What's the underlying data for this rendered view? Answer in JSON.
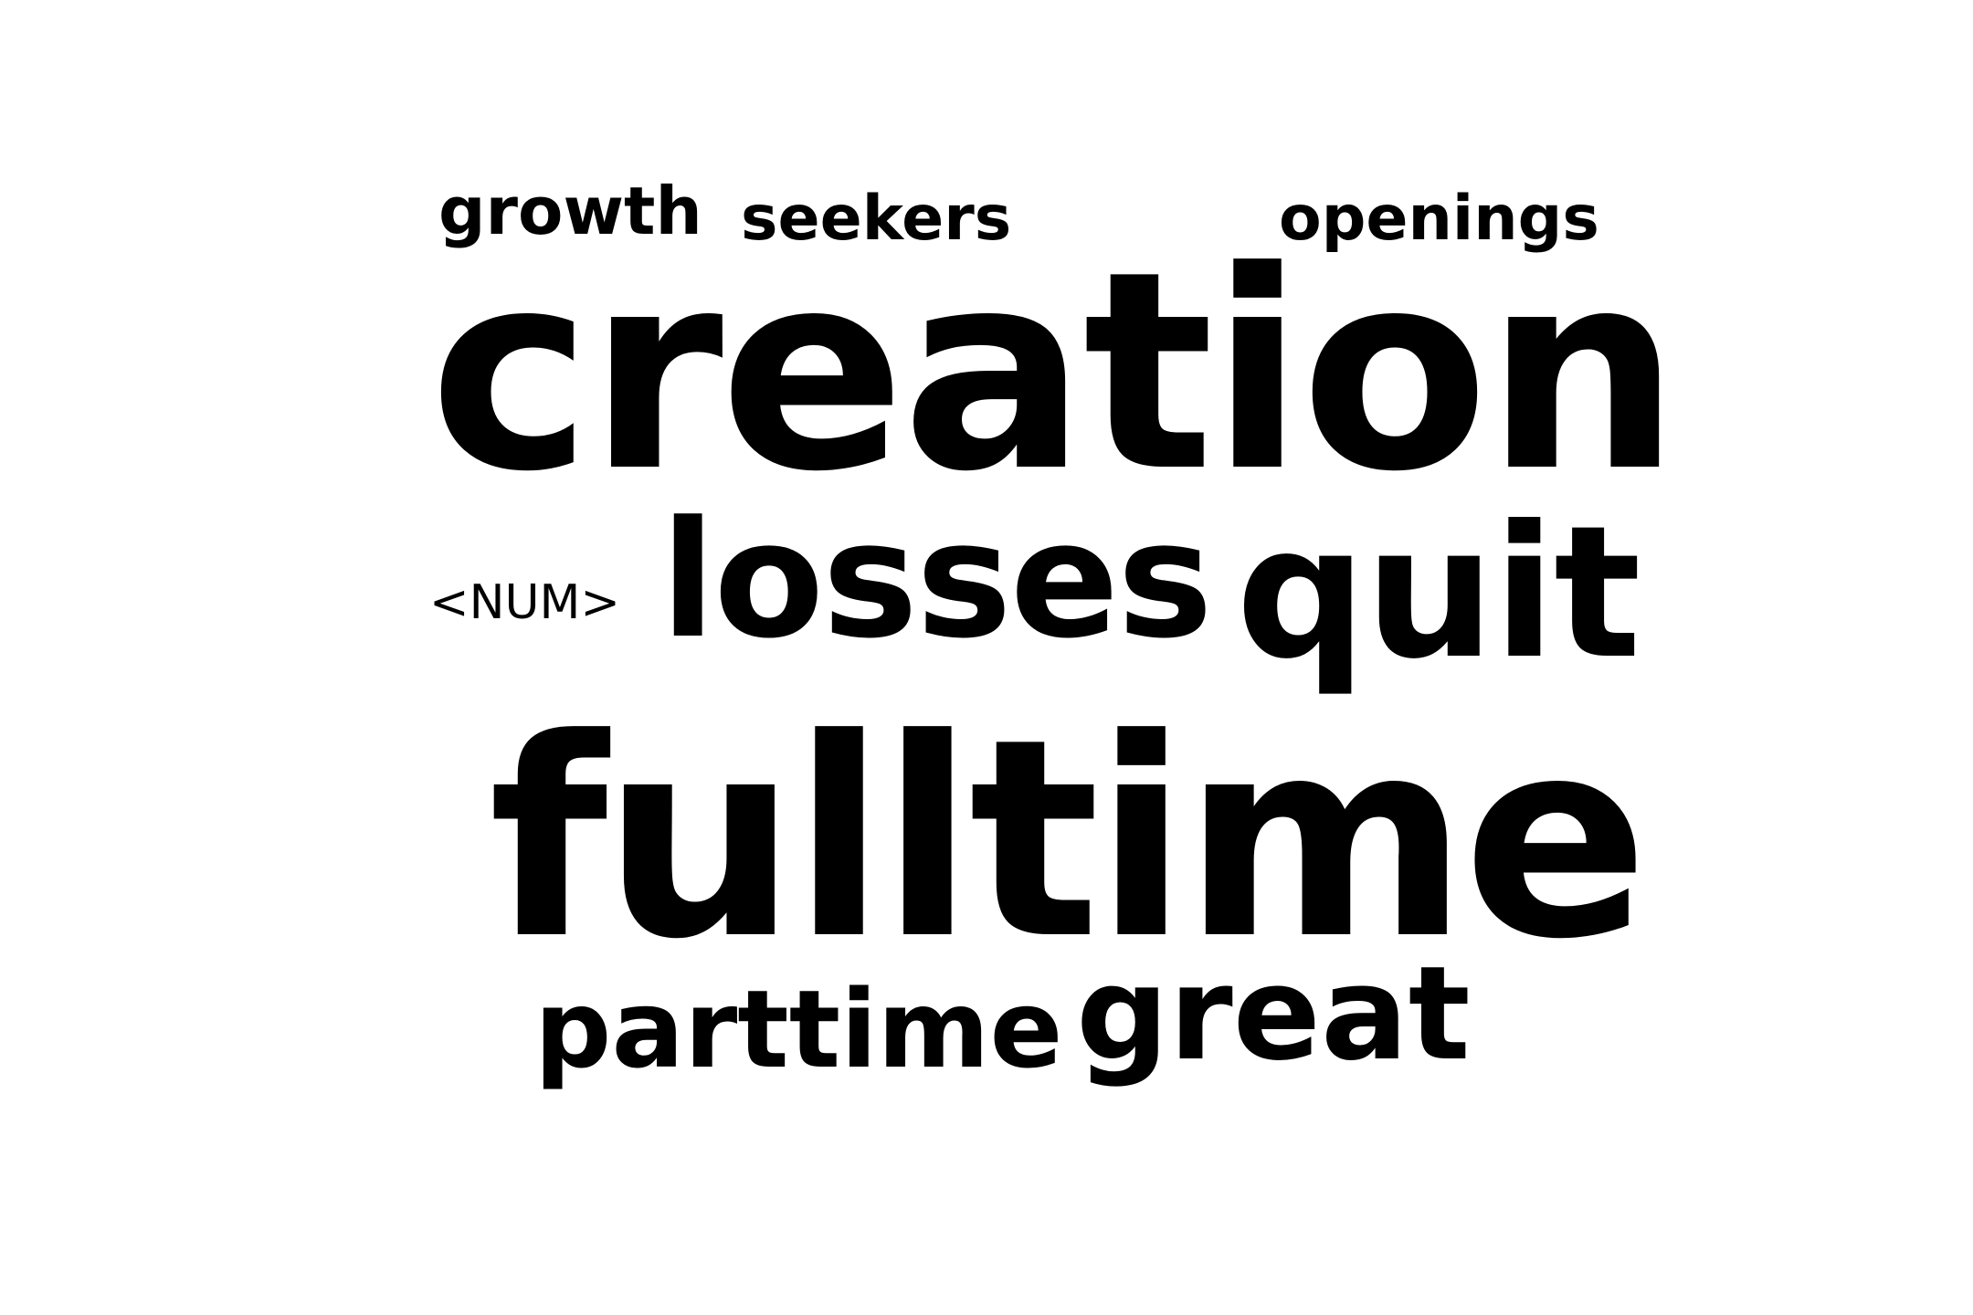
{
  "word_cloud": {
    "words": [
      {
        "text": "growth"
      },
      {
        "text": "seekers"
      },
      {
        "text": "openings"
      },
      {
        "text": "creation"
      },
      {
        "text": "<NUM>"
      },
      {
        "text": "losses"
      },
      {
        "text": "quit"
      },
      {
        "text": "fulltime"
      },
      {
        "text": "parttime"
      },
      {
        "text": "great"
      }
    ],
    "text_color": "#000000",
    "background_color": "#ffffff"
  }
}
